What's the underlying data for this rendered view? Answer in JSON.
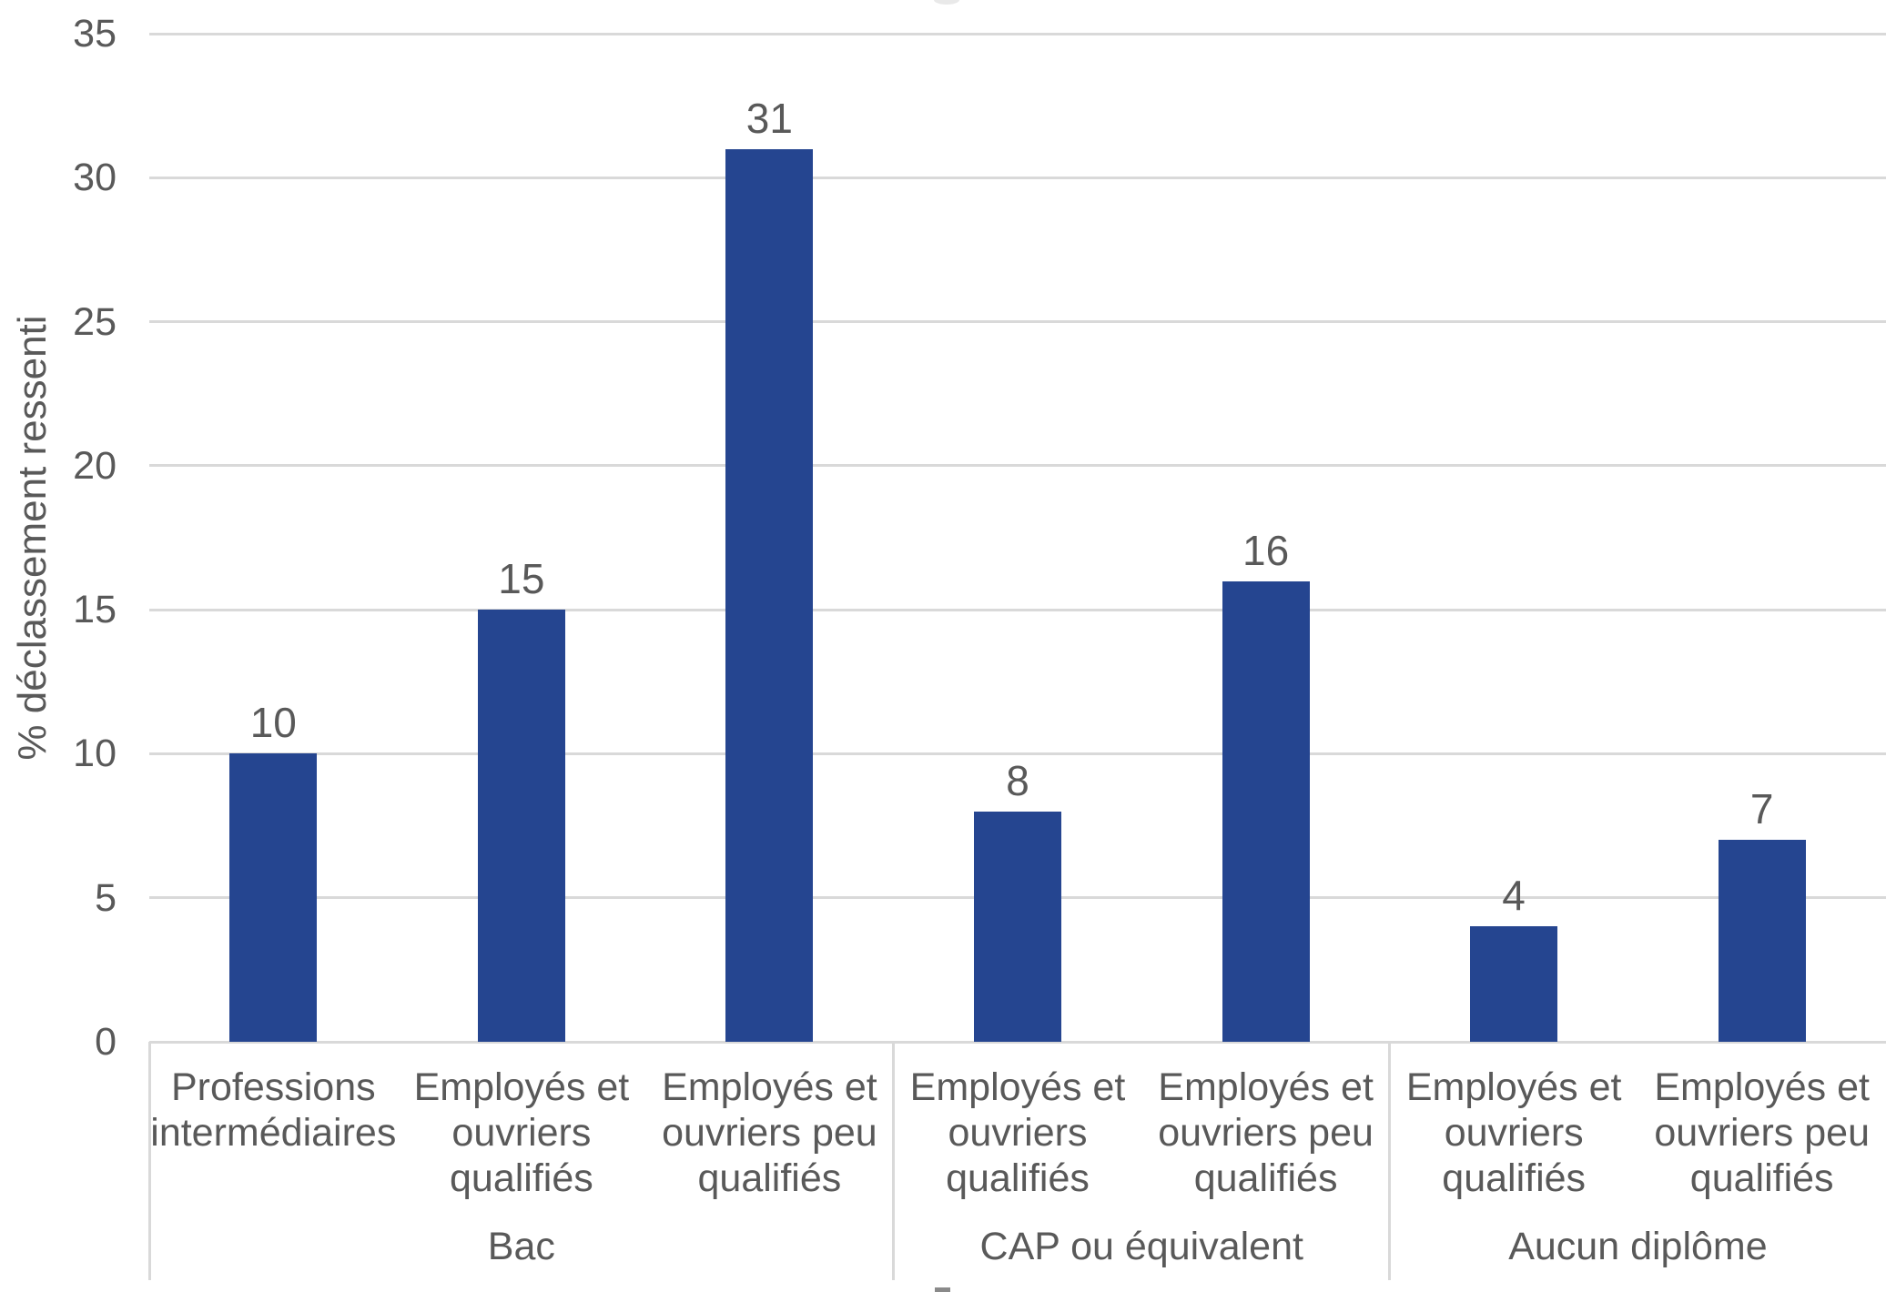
{
  "chart_data": {
    "type": "bar",
    "title": "",
    "ylabel": "% déclassement ressenti",
    "xlabel": "",
    "ylim": [
      0,
      35
    ],
    "yticks": [
      0,
      5,
      10,
      15,
      20,
      25,
      30,
      35
    ],
    "grid": true,
    "legend_position": "none",
    "bar_color": "#254590",
    "gridline_color": "#d9d9d9",
    "axis_text_color": "#595959",
    "group_labels": [
      "Bac",
      "CAP ou équivalent",
      "Aucun diplôme"
    ],
    "categories": [
      "Professions intermédiaires",
      "Employés et ouvriers qualifiés",
      "Employés et ouvriers peu qualifiés",
      "Employés et ouvriers qualifiés",
      "Employés et ouvriers peu qualifiés",
      "Employés et ouvriers qualifiés",
      "Employés et ouvriers peu qualifiés"
    ],
    "values": [
      10,
      15,
      31,
      8,
      16,
      4,
      7
    ],
    "groups": [
      {
        "label": "Bac",
        "bars": [
          {
            "category_lines": [
              "Professions",
              "intermédiaires"
            ],
            "value": 10
          },
          {
            "category_lines": [
              "Employés et",
              "ouvriers",
              "qualifiés"
            ],
            "value": 15
          },
          {
            "category_lines": [
              "Employés et",
              "ouvriers peu",
              "qualifiés"
            ],
            "value": 31
          }
        ]
      },
      {
        "label": "CAP ou équivalent",
        "bars": [
          {
            "category_lines": [
              "Employés et",
              "ouvriers",
              "qualifiés"
            ],
            "value": 8
          },
          {
            "category_lines": [
              "Employés et",
              "ouvriers peu",
              "qualifiés"
            ],
            "value": 16
          }
        ]
      },
      {
        "label": "Aucun diplôme",
        "bars": [
          {
            "category_lines": [
              "Employés et",
              "ouvriers",
              "qualifiés"
            ],
            "value": 4
          },
          {
            "category_lines": [
              "Employés et",
              "ouvriers peu",
              "qualifiés"
            ],
            "value": 7
          }
        ]
      }
    ]
  }
}
